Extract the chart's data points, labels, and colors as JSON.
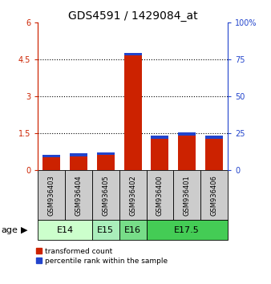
{
  "title": "GDS4591 / 1429084_at",
  "samples": [
    "GSM936403",
    "GSM936404",
    "GSM936405",
    "GSM936402",
    "GSM936400",
    "GSM936401",
    "GSM936406"
  ],
  "red_values": [
    0.52,
    0.58,
    0.62,
    4.68,
    1.28,
    1.42,
    1.28
  ],
  "blue_values": [
    0.1,
    0.12,
    0.12,
    0.1,
    0.14,
    0.12,
    0.12
  ],
  "ylim_left": [
    0,
    6
  ],
  "ylim_right": [
    0,
    100
  ],
  "yticks_left": [
    0,
    1.5,
    3,
    4.5,
    6
  ],
  "yticks_right": [
    0,
    25,
    50,
    75,
    100
  ],
  "ytick_labels_left": [
    "0",
    "1.5",
    "3",
    "4.5",
    "6"
  ],
  "ytick_labels_right": [
    "0",
    "25",
    "50",
    "75",
    "100%"
  ],
  "age_groups": [
    {
      "label": "E14",
      "start": 0,
      "end": 2,
      "color": "#ccffcc"
    },
    {
      "label": "E15",
      "start": 2,
      "end": 3,
      "color": "#aaeebb"
    },
    {
      "label": "E16",
      "start": 3,
      "end": 4,
      "color": "#77dd88"
    },
    {
      "label": "E17.5",
      "start": 4,
      "end": 7,
      "color": "#44cc55"
    }
  ],
  "bar_width": 0.65,
  "red_color": "#cc2200",
  "blue_color": "#2244cc",
  "bg_color": "#cccccc",
  "plot_bg": "#ffffff",
  "legend_red": "transformed count",
  "legend_blue": "percentile rank within the sample",
  "age_label": "age",
  "title_fontsize": 10,
  "tick_fontsize": 7,
  "label_fontsize": 8
}
